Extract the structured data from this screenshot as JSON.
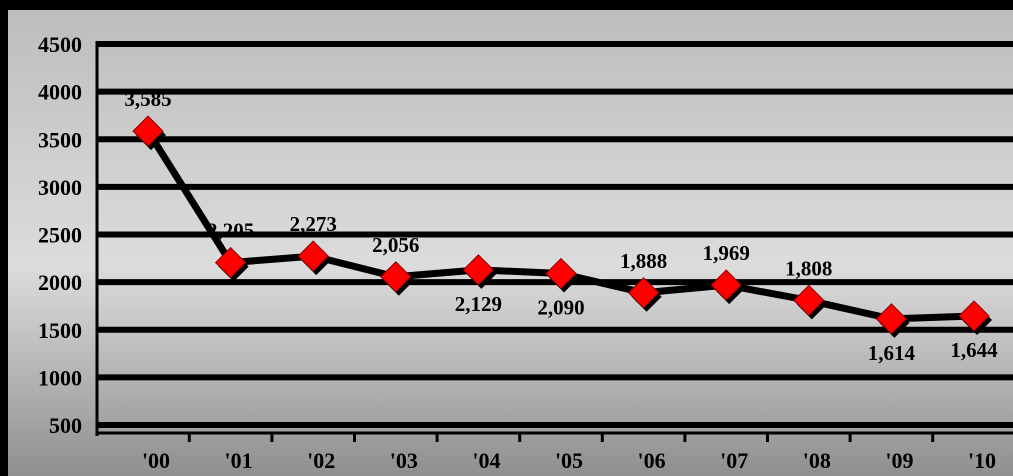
{
  "chart_data": {
    "type": "line",
    "title": "",
    "xlabel": "",
    "ylabel": "",
    "categories": [
      "'00",
      "'01",
      "'02",
      "'03",
      "'04",
      "'05",
      "'06",
      "'07",
      "'08",
      "'09",
      "'10"
    ],
    "series": [
      {
        "values": [
          3585,
          2205,
          2273,
          2056,
          2129,
          2090,
          1888,
          1969,
          1808,
          1614,
          1644
        ],
        "labels": [
          "3,585",
          "2,205",
          "2,273",
          "2,056",
          "2,129",
          "2,090",
          "1,888",
          "1,969",
          "1,808",
          "1,614",
          "1,644"
        ],
        "label_position": [
          "above",
          "above",
          "above",
          "above",
          "below",
          "below",
          "above",
          "above",
          "above",
          "below",
          "below"
        ],
        "line_color": "#000000",
        "marker": "diamond",
        "marker_color": "#ff0000"
      }
    ],
    "ylim": [
      500,
      4500
    ],
    "yticks": [
      "500",
      "1000",
      "1500",
      "2000",
      "2500",
      "3000",
      "3500",
      "4000",
      "4500"
    ],
    "ytick_values": [
      500,
      1000,
      1500,
      2000,
      2500,
      3000,
      3500,
      4000,
      4500
    ],
    "grid": true,
    "legend": "none",
    "plot_background": "gradient gray",
    "outer_background": "#000000"
  }
}
